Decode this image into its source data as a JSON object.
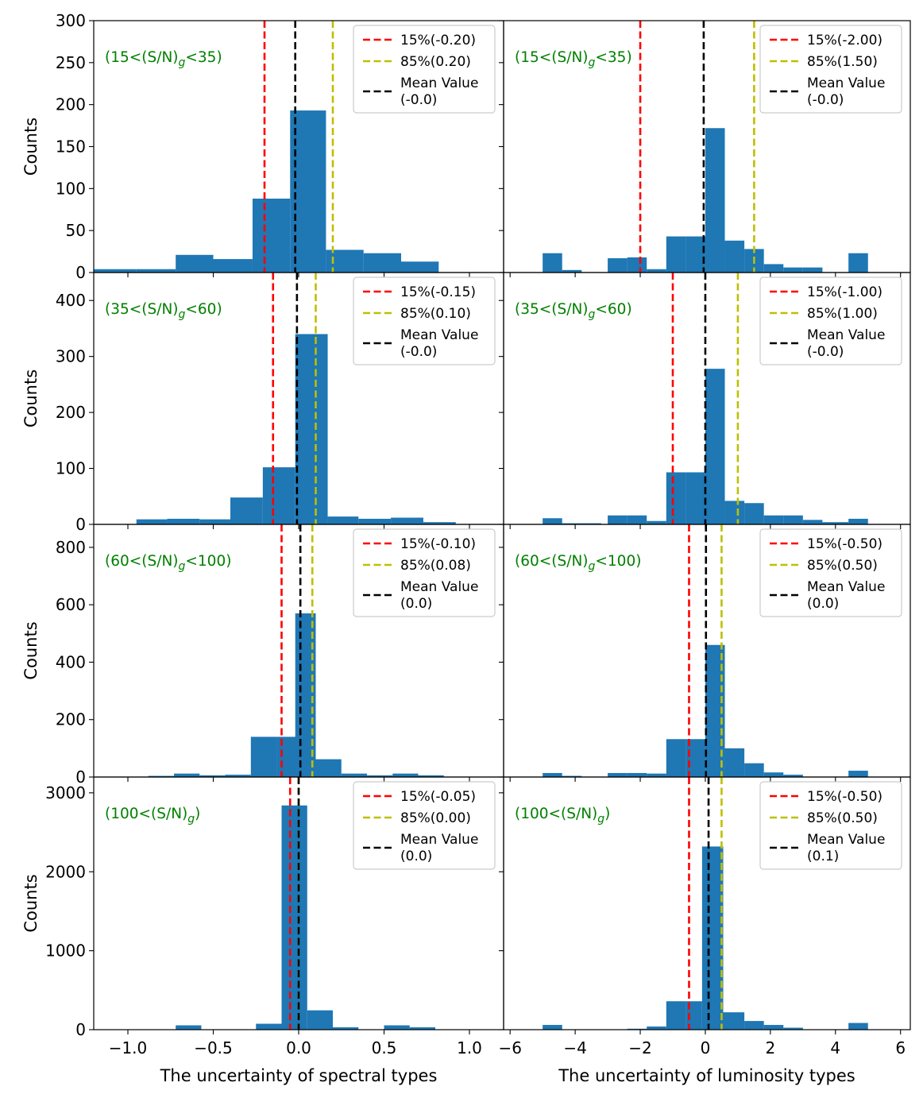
{
  "figure": {
    "ylabel": "Counts",
    "bottom_xlabels": [
      "The uncertainty of spectral types",
      "The uncertainty of luminosity types"
    ]
  },
  "colors": {
    "bar": "#1f77b4",
    "p15": "#ff0000",
    "p85": "#bfbf00",
    "mean": "#000000",
    "annotation": "#008000"
  },
  "legend_labels": {
    "p15": "15%",
    "p85": "85%",
    "mean": "Mean Value"
  },
  "chart_data": [
    {
      "type": "bar",
      "column": "spectral",
      "row": 0,
      "annotation": "(15<(S/N)g<35)",
      "xlim": [
        -1.2,
        1.2
      ],
      "xticks": [
        -1.0,
        -0.5,
        0.0,
        0.5,
        1.0
      ],
      "ylim": [
        0,
        300
      ],
      "yticks": [
        0,
        50,
        100,
        150,
        200,
        250,
        300
      ],
      "bins": [
        [
          -1.2,
          -0.95,
          4
        ],
        [
          -0.95,
          -0.72,
          4
        ],
        [
          -0.72,
          -0.5,
          21
        ],
        [
          -0.5,
          -0.27,
          16
        ],
        [
          -0.27,
          -0.05,
          88
        ],
        [
          -0.05,
          0.16,
          193
        ],
        [
          0.16,
          0.38,
          27
        ],
        [
          0.38,
          0.6,
          23
        ],
        [
          0.6,
          0.82,
          13
        ]
      ],
      "p15": -0.2,
      "p85": 0.2,
      "mean": -0.02,
      "p15_label": "(-0.20)",
      "p85_label": "(0.20)",
      "mean_label": "(-0.0)"
    },
    {
      "type": "bar",
      "column": "luminosity",
      "row": 0,
      "annotation": "(15<(S/N)g<35)",
      "xlim": [
        -6.2,
        6.3
      ],
      "xticks": [
        -6,
        -4,
        -2,
        0,
        2,
        4,
        6
      ],
      "ylim": [
        0,
        300
      ],
      "yticks": [
        0,
        50,
        100,
        150,
        200,
        250,
        300
      ],
      "bins": [
        [
          -5,
          -4.4,
          23
        ],
        [
          -4.4,
          -3.8,
          3
        ],
        [
          -3,
          -2.4,
          17
        ],
        [
          -2.4,
          -1.8,
          18
        ],
        [
          -1.8,
          -1.2,
          4
        ],
        [
          -1.2,
          -0.6,
          43
        ],
        [
          -0.6,
          0,
          43
        ],
        [
          0,
          0.6,
          172
        ],
        [
          0.6,
          1.2,
          38
        ],
        [
          1.2,
          1.8,
          28
        ],
        [
          1.8,
          2.4,
          10
        ],
        [
          2.4,
          3,
          6
        ],
        [
          3,
          3.6,
          6
        ],
        [
          4.4,
          5,
          23
        ]
      ],
      "p15": -2.0,
      "p85": 1.5,
      "mean": -0.05,
      "p15_label": "(-2.00)",
      "p85_label": "(1.50)",
      "mean_label": "(-0.0)"
    },
    {
      "type": "bar",
      "column": "spectral",
      "row": 1,
      "annotation": "(35<(S/N)g<60)",
      "xlim": [
        -1.2,
        1.2
      ],
      "xticks": [
        -1.0,
        -0.5,
        0.0,
        0.5,
        1.0
      ],
      "ylim": [
        0,
        450
      ],
      "yticks": [
        0,
        100,
        200,
        300,
        400
      ],
      "bins": [
        [
          -0.95,
          -0.77,
          9
        ],
        [
          -0.77,
          -0.58,
          10
        ],
        [
          -0.58,
          -0.4,
          9
        ],
        [
          -0.4,
          -0.21,
          48
        ],
        [
          -0.21,
          -0.02,
          102
        ],
        [
          -0.02,
          0.17,
          340
        ],
        [
          0.17,
          0.35,
          14
        ],
        [
          0.35,
          0.54,
          10
        ],
        [
          0.54,
          0.73,
          12
        ],
        [
          0.73,
          0.92,
          4
        ]
      ],
      "p15": -0.15,
      "p85": 0.1,
      "mean": -0.01,
      "p15_label": "(-0.15)",
      "p85_label": "(0.10)",
      "mean_label": "(-0.0)"
    },
    {
      "type": "bar",
      "column": "luminosity",
      "row": 1,
      "annotation": "(35<(S/N)g<60)",
      "xlim": [
        -6.2,
        6.3
      ],
      "xticks": [
        -6,
        -4,
        -2,
        0,
        2,
        4,
        6
      ],
      "ylim": [
        0,
        450
      ],
      "yticks": [
        0,
        100,
        200,
        300,
        400
      ],
      "bins": [
        [
          -5,
          -4.4,
          11
        ],
        [
          -4.4,
          -3.8,
          2
        ],
        [
          -3.8,
          -3.2,
          2
        ],
        [
          -3,
          -2.4,
          16
        ],
        [
          -2.4,
          -1.8,
          16
        ],
        [
          -1.8,
          -1.2,
          6
        ],
        [
          -1.2,
          -0.6,
          93
        ],
        [
          -0.6,
          0,
          93
        ],
        [
          0,
          0.6,
          278
        ],
        [
          0.6,
          1.2,
          42
        ],
        [
          1.2,
          1.8,
          38
        ],
        [
          1.8,
          2.4,
          16
        ],
        [
          2.4,
          3,
          16
        ],
        [
          3,
          3.6,
          8
        ],
        [
          3.6,
          4.4,
          4
        ],
        [
          4.4,
          5,
          10
        ]
      ],
      "p15": -1.0,
      "p85": 1.0,
      "mean": 0.0,
      "p15_label": "(-1.00)",
      "p85_label": "(1.00)",
      "mean_label": "(-0.0)"
    },
    {
      "type": "bar",
      "column": "spectral",
      "row": 2,
      "annotation": "(60<(S/N)g<100)",
      "xlim": [
        -1.2,
        1.2
      ],
      "xticks": [
        -1.0,
        -0.5,
        0.0,
        0.5,
        1.0
      ],
      "ylim": [
        0,
        880
      ],
      "yticks": [
        0,
        200,
        400,
        600,
        800
      ],
      "bins": [
        [
          -0.88,
          -0.73,
          4
        ],
        [
          -0.73,
          -0.58,
          12
        ],
        [
          -0.58,
          -0.43,
          6
        ],
        [
          -0.43,
          -0.28,
          8
        ],
        [
          -0.28,
          -0.13,
          140
        ],
        [
          -0.13,
          0.02,
          140
        ],
        [
          -0.02,
          0.1,
          570
        ],
        [
          0.1,
          0.25,
          62
        ],
        [
          0.25,
          0.4,
          12
        ],
        [
          0.4,
          0.55,
          6
        ],
        [
          0.55,
          0.7,
          12
        ],
        [
          0.7,
          0.85,
          6
        ]
      ],
      "p15": -0.1,
      "p85": 0.08,
      "mean": 0.01,
      "p15_label": "(-0.10)",
      "p85_label": "(0.08)",
      "mean_label": "(0.0)"
    },
    {
      "type": "bar",
      "column": "luminosity",
      "row": 2,
      "annotation": "(60<(S/N)g<100)",
      "xlim": [
        -6.2,
        6.3
      ],
      "xticks": [
        -6,
        -4,
        -2,
        0,
        2,
        4,
        6
      ],
      "ylim": [
        0,
        880
      ],
      "yticks": [
        0,
        200,
        400,
        600,
        800
      ],
      "bins": [
        [
          -5,
          -4.4,
          14
        ],
        [
          -4.4,
          -3.8,
          4
        ],
        [
          -3,
          -2.4,
          14
        ],
        [
          -2.4,
          -1.8,
          14
        ],
        [
          -1.8,
          -1.2,
          12
        ],
        [
          -1.2,
          -0.6,
          132
        ],
        [
          -0.6,
          0,
          132
        ],
        [
          0,
          0.6,
          460
        ],
        [
          0.6,
          1.2,
          100
        ],
        [
          1.2,
          1.8,
          48
        ],
        [
          1.8,
          2.4,
          16
        ],
        [
          2.4,
          3,
          8
        ],
        [
          4.4,
          5,
          22
        ]
      ],
      "p15": -0.5,
      "p85": 0.5,
      "mean": 0.02,
      "p15_label": "(-0.50)",
      "p85_label": "(0.50)",
      "mean_label": "(0.0)"
    },
    {
      "type": "bar",
      "column": "spectral",
      "row": 3,
      "annotation": "(100<(S/N)g)",
      "xlim": [
        -1.2,
        1.2
      ],
      "xticks": [
        -1.0,
        -0.5,
        0.0,
        0.5,
        1.0
      ],
      "ylim": [
        0,
        3200
      ],
      "yticks": [
        0,
        1000,
        2000,
        3000
      ],
      "bins": [
        [
          -0.72,
          -0.57,
          55
        ],
        [
          -0.25,
          -0.1,
          75
        ],
        [
          -0.1,
          0.05,
          2840
        ],
        [
          0.05,
          0.2,
          245
        ],
        [
          0.2,
          0.35,
          30
        ],
        [
          0.5,
          0.65,
          55
        ],
        [
          0.65,
          0.8,
          30
        ]
      ],
      "p15": -0.05,
      "p85": 0.0,
      "mean": 0.0,
      "p15_label": "(-0.05)",
      "p85_label": "(0.00)",
      "mean_label": "(0.0)"
    },
    {
      "type": "bar",
      "column": "luminosity",
      "row": 3,
      "annotation": "(100<(S/N)g)",
      "xlim": [
        -6.2,
        6.3
      ],
      "xticks": [
        -6,
        -4,
        -2,
        0,
        2,
        4,
        6
      ],
      "ylim": [
        0,
        3200
      ],
      "yticks": [
        0,
        1000,
        2000,
        3000
      ],
      "bins": [
        [
          -5,
          -4.4,
          60
        ],
        [
          -2.4,
          -1.8,
          12
        ],
        [
          -1.8,
          -1.2,
          40
        ],
        [
          -1.2,
          -0.6,
          360
        ],
        [
          -0.6,
          -0.1,
          360
        ],
        [
          -0.1,
          0.55,
          2320
        ],
        [
          0.55,
          1.2,
          220
        ],
        [
          1.2,
          1.8,
          110
        ],
        [
          1.8,
          2.4,
          60
        ],
        [
          2.4,
          3,
          25
        ],
        [
          4.4,
          5,
          85
        ]
      ],
      "p15": -0.5,
      "p85": 0.5,
      "mean": 0.1,
      "p15_label": "(-0.50)",
      "p85_label": "(0.50)",
      "mean_label": "(0.1)"
    }
  ]
}
